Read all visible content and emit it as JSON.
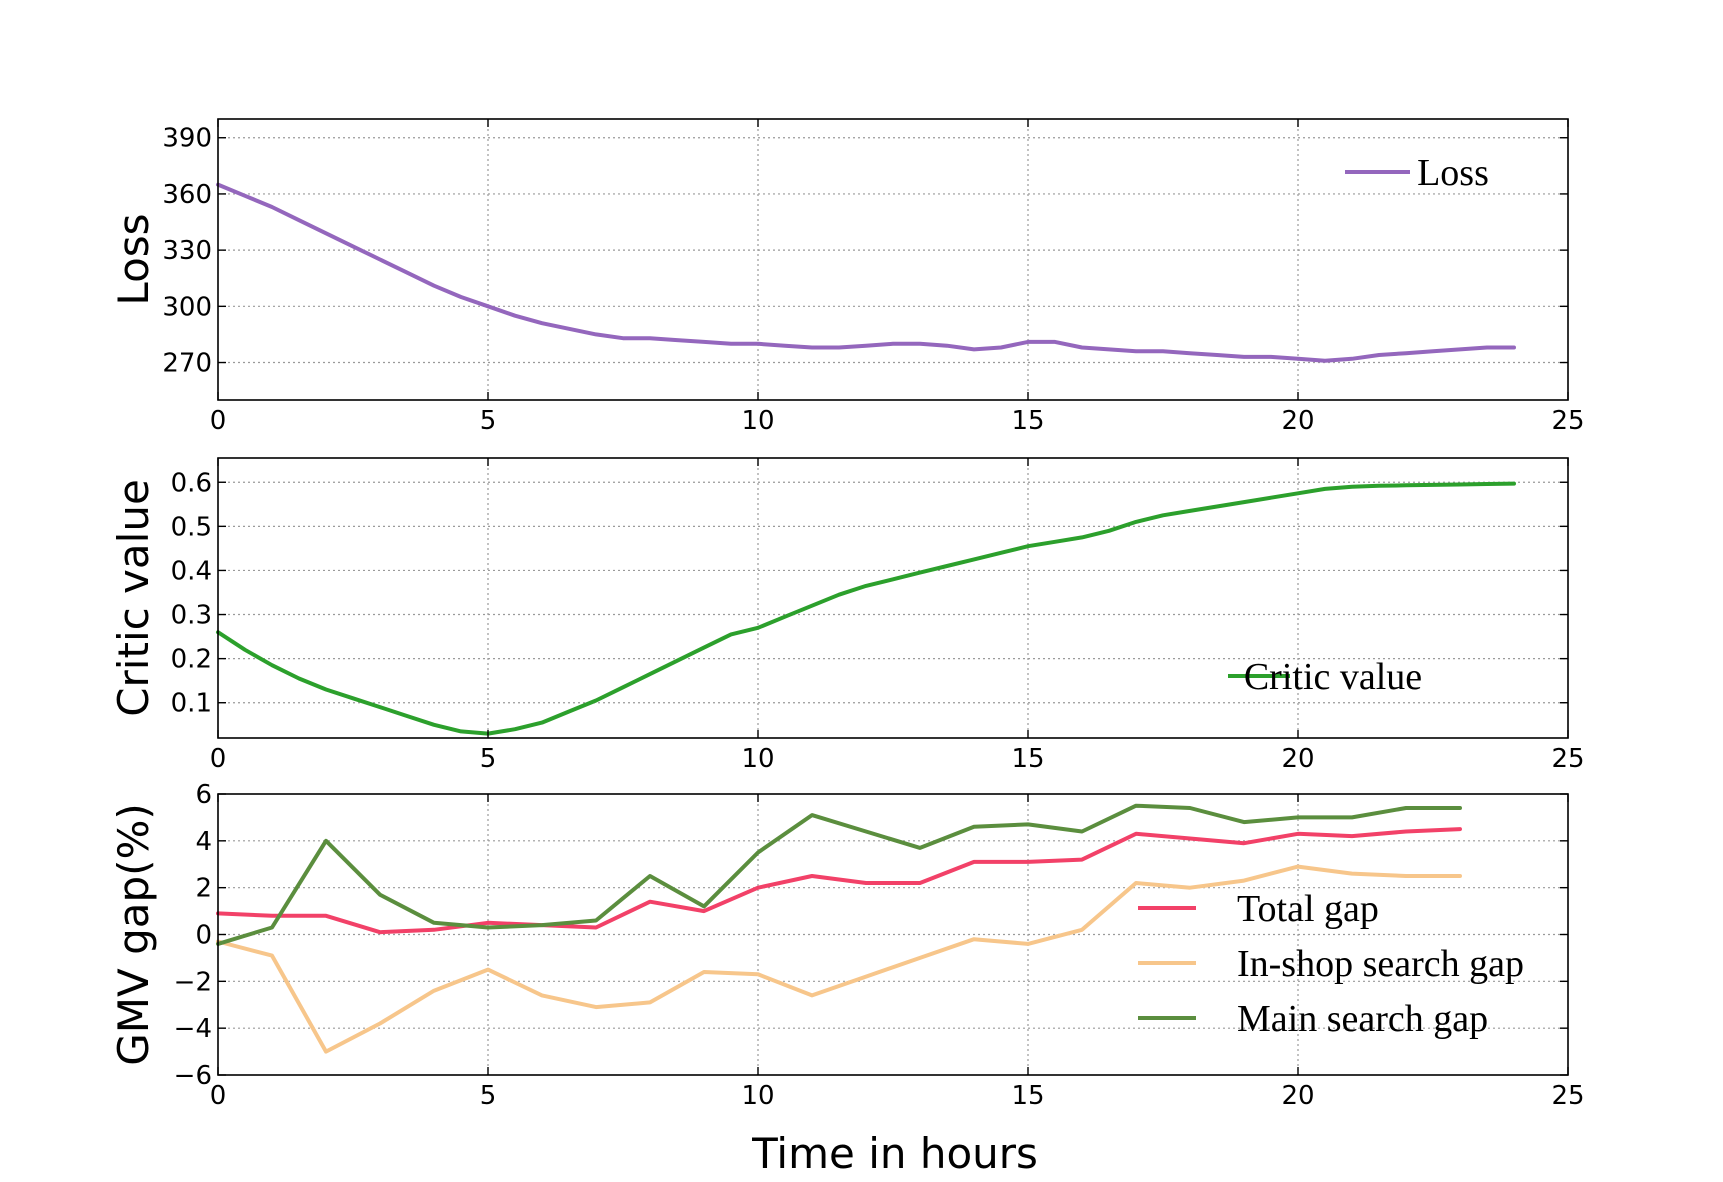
{
  "chart_data": [
    {
      "type": "line",
      "ylabel": "Loss",
      "xlim": [
        0,
        25
      ],
      "ylim": [
        250,
        400
      ],
      "xticks": [
        0,
        5,
        10,
        15,
        20,
        25
      ],
      "yticks": [
        270,
        300,
        330,
        360,
        390
      ],
      "grid": true,
      "legend": "top-right",
      "series": [
        {
          "name": "Loss",
          "color": "#9467bd",
          "x": [
            0,
            0.5,
            1,
            1.5,
            2,
            2.5,
            3,
            3.5,
            4,
            4.5,
            5,
            5.5,
            6,
            6.5,
            7,
            7.5,
            8,
            8.5,
            9,
            9.5,
            10,
            10.5,
            11,
            11.5,
            12,
            12.5,
            13,
            13.5,
            14,
            14.5,
            15,
            15.5,
            16,
            16.5,
            17,
            17.5,
            18,
            18.5,
            19,
            19.5,
            20,
            20.5,
            21,
            21.5,
            22,
            22.5,
            23,
            23.5,
            24
          ],
          "y": [
            365,
            359,
            353,
            346,
            339,
            332,
            325,
            318,
            311,
            305,
            300,
            295,
            291,
            288,
            285,
            283,
            283,
            282,
            281,
            280,
            280,
            279,
            278,
            278,
            279,
            280,
            280,
            279,
            277,
            278,
            281,
            281,
            278,
            277,
            276,
            276,
            275,
            274,
            273,
            273,
            272,
            271,
            272,
            274,
            275,
            276,
            277,
            278,
            278
          ]
        }
      ]
    },
    {
      "type": "line",
      "ylabel": "Critic value",
      "xlim": [
        0,
        25
      ],
      "ylim": [
        0.02,
        0.655
      ],
      "xticks": [
        0,
        5,
        10,
        15,
        20,
        25
      ],
      "yticks": [
        0.1,
        0.2,
        0.3,
        0.4,
        0.5,
        0.6
      ],
      "grid": true,
      "legend": "bottom-right",
      "series": [
        {
          "name": "Critic value",
          "color": "#2ca02c",
          "x": [
            0,
            0.5,
            1,
            1.5,
            2,
            2.5,
            3,
            3.5,
            4,
            4.5,
            5,
            5.5,
            6,
            6.5,
            7,
            7.5,
            8,
            8.5,
            9,
            9.5,
            10,
            10.5,
            11,
            11.5,
            12,
            12.5,
            13,
            13.5,
            14,
            14.5,
            15,
            15.5,
            16,
            16.5,
            17,
            17.5,
            18,
            18.5,
            19,
            19.5,
            20,
            20.5,
            21,
            21.5,
            22,
            22.5,
            23,
            23.5,
            24
          ],
          "y": [
            0.26,
            0.22,
            0.185,
            0.155,
            0.13,
            0.11,
            0.09,
            0.07,
            0.05,
            0.035,
            0.03,
            0.04,
            0.055,
            0.08,
            0.105,
            0.135,
            0.165,
            0.195,
            0.225,
            0.255,
            0.27,
            0.295,
            0.32,
            0.345,
            0.365,
            0.38,
            0.395,
            0.41,
            0.425,
            0.44,
            0.455,
            0.465,
            0.475,
            0.49,
            0.51,
            0.525,
            0.535,
            0.545,
            0.555,
            0.565,
            0.575,
            0.585,
            0.59,
            0.592,
            0.593,
            0.594,
            0.595,
            0.596,
            0.597
          ]
        }
      ]
    },
    {
      "type": "line",
      "ylabel": "GMV gap(%)",
      "xlabel": "Time in hours",
      "xlim": [
        0,
        25
      ],
      "ylim": [
        -6,
        6
      ],
      "xticks": [
        0,
        5,
        10,
        15,
        20,
        25
      ],
      "yticks": [
        -6,
        -4,
        -2,
        0,
        2,
        4,
        6
      ],
      "ytick_labels": [
        "−6",
        "−4",
        "−2",
        "0",
        "2",
        "4",
        "6"
      ],
      "grid": true,
      "legend": "center-right",
      "series": [
        {
          "name": "Total gap",
          "color": "#f24168",
          "x": [
            0,
            1,
            2,
            3,
            4,
            5,
            6,
            7,
            8,
            9,
            10,
            11,
            12,
            13,
            14,
            15,
            16,
            17,
            18,
            19,
            20,
            21,
            22,
            23
          ],
          "y": [
            0.9,
            0.8,
            0.8,
            0.1,
            0.2,
            0.5,
            0.4,
            0.3,
            1.4,
            1.0,
            2.0,
            2.5,
            2.2,
            2.2,
            3.1,
            3.1,
            3.2,
            4.3,
            4.1,
            3.9,
            4.3,
            4.2,
            4.4,
            4.5
          ]
        },
        {
          "name": "In-shop search gap",
          "color": "#f7c68b",
          "x": [
            0,
            1,
            2,
            3,
            4,
            5,
            6,
            7,
            8,
            9,
            10,
            11,
            12,
            13,
            14,
            15,
            16,
            17,
            18,
            19,
            20,
            21,
            22,
            23
          ],
          "y": [
            -0.3,
            -0.9,
            -5.0,
            -3.8,
            -2.4,
            -1.5,
            -2.6,
            -3.1,
            -2.9,
            -1.6,
            -1.7,
            -2.6,
            -1.8,
            -1.0,
            -0.2,
            -0.4,
            0.2,
            2.2,
            2.0,
            2.3,
            2.9,
            2.6,
            2.5,
            2.5
          ]
        },
        {
          "name": "Main search gap",
          "color": "#5b8e3e",
          "x": [
            0,
            1,
            2,
            3,
            4,
            5,
            6,
            7,
            8,
            9,
            10,
            11,
            12,
            13,
            14,
            15,
            16,
            17,
            18,
            19,
            20,
            21,
            22,
            23
          ],
          "y": [
            -0.4,
            0.3,
            4.0,
            1.7,
            0.5,
            0.3,
            0.4,
            0.6,
            2.5,
            1.2,
            3.5,
            5.1,
            4.4,
            3.7,
            4.6,
            4.7,
            4.4,
            5.5,
            5.4,
            4.8,
            5.0,
            5.0,
            5.4,
            5.4
          ]
        }
      ]
    }
  ]
}
